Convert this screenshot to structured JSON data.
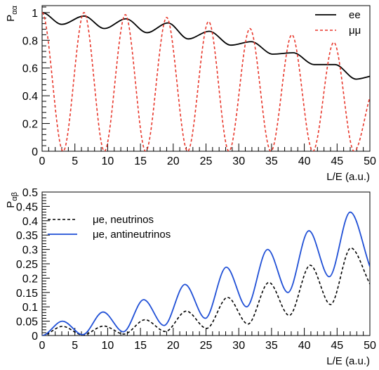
{
  "chart_data": [
    {
      "type": "line",
      "xlabel": "L/E (a.u.)",
      "ylabel": "P",
      "ylabel_sub": "αα",
      "xlim": [
        0,
        50
      ],
      "ylim": [
        0,
        1.05
      ],
      "xticks": [
        0,
        5,
        10,
        15,
        20,
        25,
        30,
        35,
        40,
        45,
        50
      ],
      "xtick_labels": [
        "0",
        "5",
        "10",
        "15",
        "20",
        "25",
        "30",
        "35",
        "40",
        "45",
        "50"
      ],
      "yticks": [
        0,
        0.2,
        0.4,
        0.6,
        0.8,
        1
      ],
      "ytick_labels": [
        "0",
        "0.2",
        "0.4",
        "0.6",
        "0.8",
        "1"
      ],
      "legend_position": "top-right",
      "grid": false,
      "series": [
        {
          "name": "ee",
          "color": "#000000",
          "dash": "solid",
          "x": [
            0,
            3,
            6.4,
            9.5,
            12.8,
            16,
            19.2,
            22.3,
            25.5,
            28.8,
            31.9,
            35.2,
            38.3,
            41.5,
            44.7,
            47.9,
            50
          ],
          "y": [
            1.0,
            0.915,
            0.975,
            0.885,
            0.955,
            0.855,
            0.925,
            0.81,
            0.865,
            0.765,
            0.79,
            0.7,
            0.71,
            0.625,
            0.625,
            0.52,
            0.54
          ]
        },
        {
          "name": "μμ",
          "color": "#e8372b",
          "dash": "dashed",
          "x": [
            0,
            3.2,
            6.4,
            9.5,
            12.7,
            15.8,
            19.0,
            22.2,
            25.4,
            28.5,
            31.7,
            34.9,
            38.1,
            41.3,
            44.5,
            47.6,
            50
          ],
          "y": [
            1.0,
            0.0,
            1.0,
            0.0,
            0.985,
            0.0,
            0.965,
            0.0,
            0.935,
            0.0,
            0.885,
            0.0,
            0.84,
            0.0,
            0.785,
            0.0,
            0.39
          ]
        }
      ]
    },
    {
      "type": "line",
      "xlabel": "L/E (a.u.)",
      "ylabel": "P",
      "ylabel_sub": "αβ",
      "xlim": [
        0,
        50
      ],
      "ylim": [
        0,
        0.5
      ],
      "xticks": [
        0,
        5,
        10,
        15,
        20,
        25,
        30,
        35,
        40,
        45,
        50
      ],
      "xtick_labels": [
        "0",
        "5",
        "10",
        "15",
        "20",
        "25",
        "30",
        "35",
        "40",
        "45",
        "50"
      ],
      "yticks": [
        0,
        0.05,
        0.1,
        0.15,
        0.2,
        0.25,
        0.3,
        0.35,
        0.4,
        0.45,
        0.5
      ],
      "ytick_labels": [
        "0",
        "0.05",
        "0.1",
        "0.15",
        "0.2",
        "0.25",
        "0.3",
        "0.35",
        "0.4",
        "0.45",
        "0.5"
      ],
      "legend_position": "top-left",
      "grid": false,
      "series": [
        {
          "name": "μe, neutrinos",
          "color": "#000000",
          "dash": "dashed",
          "x": [
            0,
            3.1,
            6.2,
            9.4,
            12.5,
            15.7,
            18.8,
            22.0,
            25.1,
            28.3,
            31.4,
            34.6,
            37.7,
            40.9,
            44.0,
            47.1,
            50
          ],
          "y": [
            0,
            0.032,
            0.002,
            0.033,
            0.005,
            0.055,
            0.014,
            0.085,
            0.025,
            0.133,
            0.04,
            0.185,
            0.07,
            0.245,
            0.108,
            0.305,
            0.18
          ]
        },
        {
          "name": "μe, antineutrinos",
          "color": "#1f4fd6",
          "dash": "solid",
          "x": [
            0,
            3.1,
            6.2,
            9.3,
            12.4,
            15.5,
            18.6,
            21.8,
            24.9,
            28.1,
            31.2,
            34.4,
            37.5,
            40.7,
            43.8,
            47.0,
            50
          ],
          "y": [
            0,
            0.05,
            0.003,
            0.082,
            0.013,
            0.125,
            0.035,
            0.178,
            0.06,
            0.238,
            0.1,
            0.3,
            0.15,
            0.365,
            0.205,
            0.43,
            0.24
          ]
        }
      ]
    }
  ]
}
